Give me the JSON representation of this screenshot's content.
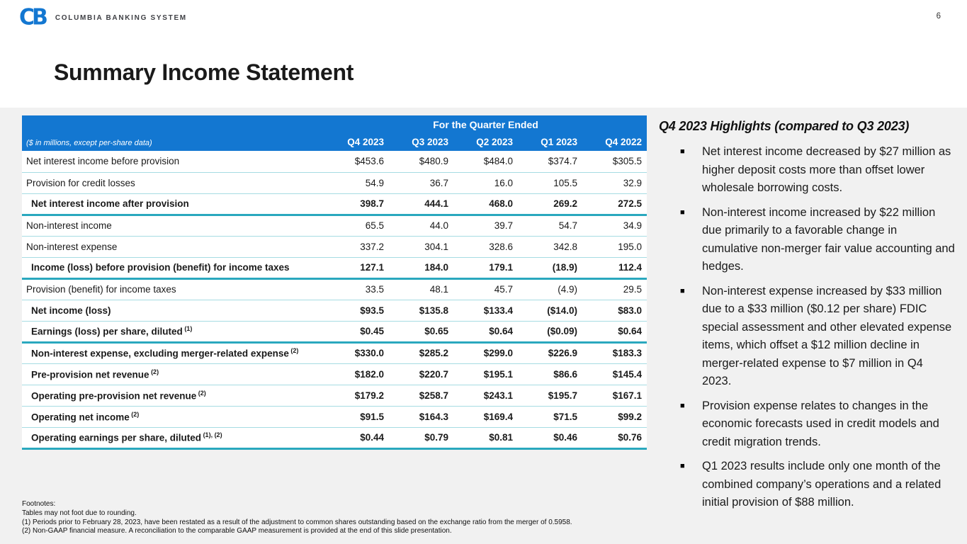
{
  "page_number": "6",
  "logo": {
    "mark": "CB",
    "text": "COLUMBIA BANKING SYSTEM"
  },
  "title": "Summary Income Statement",
  "table": {
    "span_header": "For the Quarter Ended",
    "caption": "($ in millions, except per-share data)",
    "columns": [
      "Q4 2023",
      "Q3 2023",
      "Q2 2023",
      "Q1 2023",
      "Q4 2022"
    ],
    "rows": [
      {
        "label": "Net interest income before provision",
        "sup": "",
        "values": [
          "$453.6",
          "$480.9",
          "$484.0",
          "$374.7",
          "$305.5"
        ],
        "bold": false,
        "indent": false,
        "sep": "thin"
      },
      {
        "label": "Provision for credit losses",
        "sup": "",
        "values": [
          "54.9",
          "36.7",
          "16.0",
          "105.5",
          "32.9"
        ],
        "bold": false,
        "indent": false,
        "sep": "thin"
      },
      {
        "label": "Net interest income after provision",
        "sup": "",
        "values": [
          "398.7",
          "444.1",
          "468.0",
          "269.2",
          "272.5"
        ],
        "bold": true,
        "indent": true,
        "sep": "thick"
      },
      {
        "label": "Non-interest income",
        "sup": "",
        "values": [
          "65.5",
          "44.0",
          "39.7",
          "54.7",
          "34.9"
        ],
        "bold": false,
        "indent": false,
        "sep": "thin"
      },
      {
        "label": "Non-interest expense",
        "sup": "",
        "values": [
          "337.2",
          "304.1",
          "328.6",
          "342.8",
          "195.0"
        ],
        "bold": false,
        "indent": false,
        "sep": "thin"
      },
      {
        "label": "Income (loss) before provision (benefit) for income taxes",
        "sup": "",
        "values": [
          "127.1",
          "184.0",
          "179.1",
          "(18.9)",
          "112.4"
        ],
        "bold": true,
        "indent": true,
        "sep": "thick"
      },
      {
        "label": "Provision (benefit) for income taxes",
        "sup": "",
        "values": [
          "33.5",
          "48.1",
          "45.7",
          "(4.9)",
          "29.5"
        ],
        "bold": false,
        "indent": false,
        "sep": "thin"
      },
      {
        "label": "Net income (loss)",
        "sup": "",
        "values": [
          "$93.5",
          "$135.8",
          "$133.4",
          "($14.0)",
          "$83.0"
        ],
        "bold": true,
        "indent": true,
        "sep": "thin"
      },
      {
        "label": "Earnings (loss) per share, diluted",
        "sup": "(1)",
        "values": [
          "$0.45",
          "$0.65",
          "$0.64",
          "($0.09)",
          "$0.64"
        ],
        "bold": true,
        "indent": true,
        "sep": "thick"
      },
      {
        "label": "Non-interest expense, excluding merger-related expense",
        "sup": "(2)",
        "values": [
          "$330.0",
          "$285.2",
          "$299.0",
          "$226.9",
          "$183.3"
        ],
        "bold": true,
        "indent": true,
        "sep": "thin"
      },
      {
        "label": "Pre-provision net revenue",
        "sup": "(2)",
        "values": [
          "$182.0",
          "$220.7",
          "$195.1",
          "$86.6",
          "$145.4"
        ],
        "bold": true,
        "indent": true,
        "sep": "thin"
      },
      {
        "label": "Operating pre-provision net revenue",
        "sup": "(2)",
        "values": [
          "$179.2",
          "$258.7",
          "$243.1",
          "$195.7",
          "$167.1"
        ],
        "bold": true,
        "indent": true,
        "sep": "thin"
      },
      {
        "label": "Operating net income",
        "sup": "(2)",
        "values": [
          "$91.5",
          "$164.3",
          "$169.4",
          "$71.5",
          "$99.2"
        ],
        "bold": true,
        "indent": true,
        "sep": "thin"
      },
      {
        "label": "Operating earnings per share, diluted",
        "sup": "(1), (2)",
        "values": [
          "$0.44",
          "$0.79",
          "$0.81",
          "$0.46",
          "$0.76"
        ],
        "bold": true,
        "indent": true,
        "sep": "thick"
      }
    ]
  },
  "highlights": {
    "heading": "Q4 2023 Highlights (compared to Q3 2023)",
    "bullets": [
      "Net interest income decreased by $27 million as higher deposit costs more than offset lower wholesale borrowing costs.",
      "Non-interest income increased by $22 million due primarily to a favorable change in cumulative non-merger fair value accounting and hedges.",
      "Non-interest expense increased by $33 million due to a $33 million ($0.12 per share) FDIC special assessment and other elevated expense items, which offset a $12 million decline in merger-related expense to $7 million in Q4 2023.",
      "Provision expense relates to changes in the economic forecasts used in credit models and credit migration trends.",
      "Q1 2023 results include only one month of the combined company’s operations and a related initial provision of $88 million."
    ]
  },
  "footnotes": {
    "lines": [
      "Footnotes:",
      "Tables may not foot due to rounding.",
      "(1) Periods prior to February 28, 2023, have been restated as a result of the adjustment to common shares outstanding based on the exchange ratio from the merger of 0.5958.",
      "(2) Non-GAAP financial measure.  A reconciliation to the comparable GAAP measurement is provided at the end of this slide presentation."
    ]
  },
  "colors": {
    "header_blue": "#1377d1",
    "teal_thick": "#2aa8be",
    "teal_thin": "#a6dce3",
    "content_bg": "#f1f1f1"
  }
}
